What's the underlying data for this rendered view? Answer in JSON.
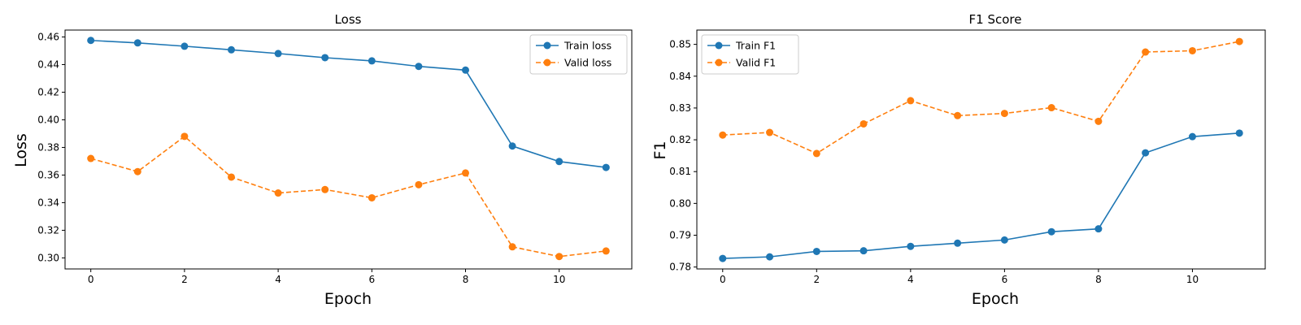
{
  "chart_data": [
    {
      "type": "line",
      "title": "Loss",
      "xlabel": "Epoch",
      "ylabel": "Loss",
      "x": [
        0,
        1,
        2,
        3,
        4,
        5,
        6,
        7,
        8,
        9,
        10,
        11
      ],
      "xlim": [
        -0.55,
        11.55
      ],
      "ylim": [
        0.292,
        0.465
      ],
      "xticks": [
        0,
        2,
        4,
        6,
        8,
        10
      ],
      "yticks": [
        0.3,
        0.32,
        0.34,
        0.36,
        0.38,
        0.4,
        0.42,
        0.44,
        0.46
      ],
      "ytick_labels": [
        "0.30",
        "0.32",
        "0.34",
        "0.36",
        "0.38",
        "0.40",
        "0.42",
        "0.44",
        "0.46"
      ],
      "grid": false,
      "legend_position": "top-right",
      "series": [
        {
          "name": "Train loss",
          "color": "#1f77b4",
          "linestyle": "solid",
          "marker": "circle",
          "values": [
            0.4575,
            0.4557,
            0.4533,
            0.4507,
            0.448,
            0.445,
            0.4427,
            0.4387,
            0.436,
            0.381,
            0.3698,
            0.3655
          ]
        },
        {
          "name": "Valid loss",
          "color": "#ff7f0e",
          "linestyle": "dashed",
          "marker": "circle",
          "values": [
            0.372,
            0.3625,
            0.388,
            0.3585,
            0.347,
            0.3495,
            0.3435,
            0.353,
            0.3615,
            0.308,
            0.301,
            0.305
          ]
        }
      ]
    },
    {
      "type": "line",
      "title": "F1 Score",
      "xlabel": "Epoch",
      "ylabel": "F1",
      "x": [
        0,
        1,
        2,
        3,
        4,
        5,
        6,
        7,
        8,
        9,
        10,
        11
      ],
      "xlim": [
        -0.55,
        11.55
      ],
      "ylim": [
        0.7794,
        0.8545
      ],
      "xticks": [
        0,
        2,
        4,
        6,
        8,
        10
      ],
      "yticks": [
        0.78,
        0.79,
        0.8,
        0.81,
        0.82,
        0.83,
        0.84,
        0.85
      ],
      "ytick_labels": [
        "0.78",
        "0.79",
        "0.80",
        "0.81",
        "0.82",
        "0.83",
        "0.84",
        "0.85"
      ],
      "grid": false,
      "legend_position": "top-left",
      "series": [
        {
          "name": "Train F1",
          "color": "#1f77b4",
          "linestyle": "solid",
          "marker": "circle",
          "values": [
            0.7827,
            0.7832,
            0.7849,
            0.7851,
            0.7865,
            0.7875,
            0.7885,
            0.7911,
            0.792,
            0.8159,
            0.821,
            0.8221
          ]
        },
        {
          "name": "Valid F1",
          "color": "#ff7f0e",
          "linestyle": "dashed",
          "marker": "circle",
          "values": [
            0.8215,
            0.8223,
            0.8157,
            0.825,
            0.8323,
            0.8276,
            0.8283,
            0.8301,
            0.8258,
            0.8476,
            0.848,
            0.8509
          ]
        }
      ]
    }
  ]
}
